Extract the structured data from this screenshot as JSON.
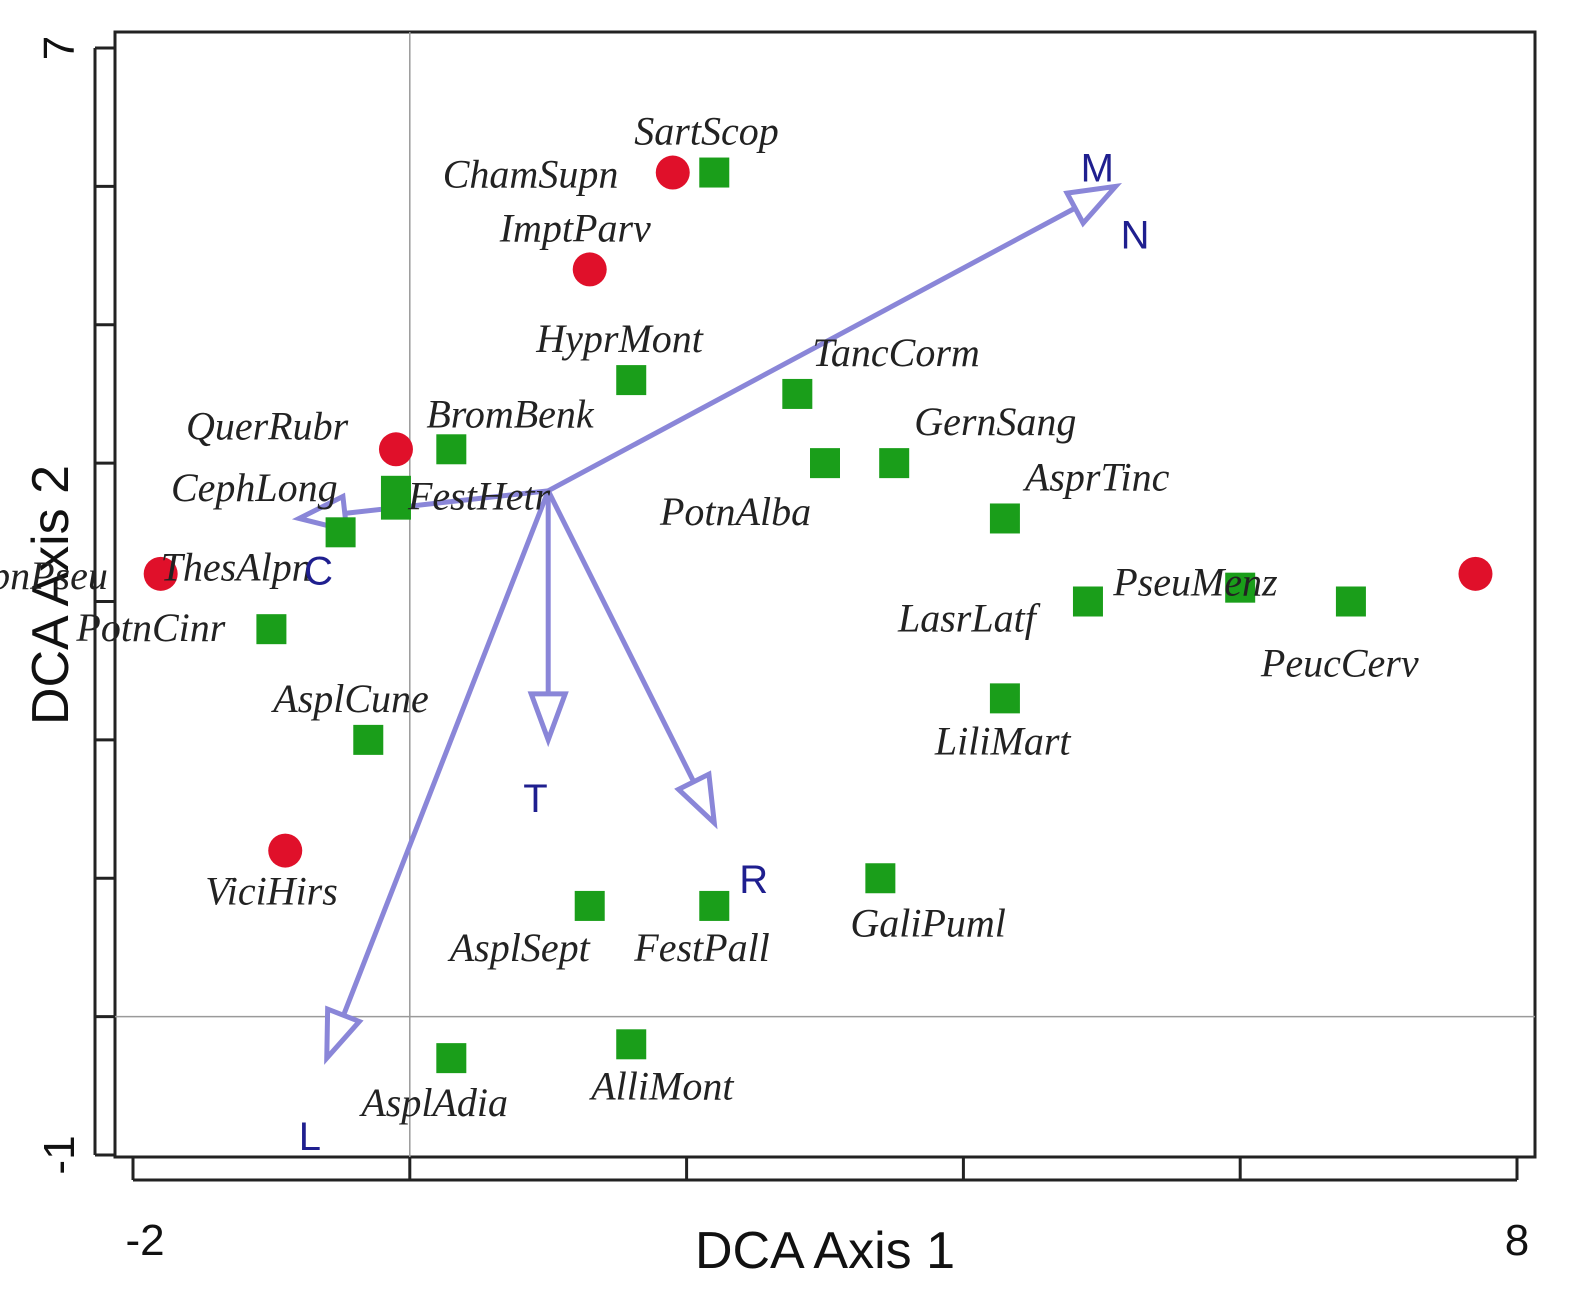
{
  "chart_data": {
    "type": "scatter",
    "title": "",
    "xlabel": "DCA Axis 1",
    "ylabel": "DCA Axis 2",
    "xlim": [
      -2,
      8
    ],
    "ylim": [
      -1,
      7
    ],
    "x_tick_labels": [
      "-2",
      "8"
    ],
    "y_tick_labels": [
      "-1",
      "7"
    ],
    "colors": {
      "species": "#1a9e1a",
      "invasive": "#e0102a",
      "arrow": "#8a86d8",
      "env_text": "#1f1f8f",
      "frame": "#222222",
      "zero_line": "#9a9a9a"
    },
    "species_squares": [
      {
        "label": "SartScop",
        "x": 2.2,
        "y": 6.1
      },
      {
        "label": "HyprMont",
        "x": 1.6,
        "y": 4.6
      },
      {
        "label": "TancCorm",
        "x": 2.8,
        "y": 4.5
      },
      {
        "label": "BromBenk",
        "x": 0.3,
        "y": 4.1
      },
      {
        "label": "GernSang",
        "x": 3.5,
        "y": 4.0
      },
      {
        "label": "PotnAlba",
        "x": 3.0,
        "y": 4.0
      },
      {
        "label": "CephLong",
        "x": -0.1,
        "y": 3.8
      },
      {
        "label": "FestHetr",
        "x": -0.1,
        "y": 3.7
      },
      {
        "label": "ThesAlpn",
        "x": -0.5,
        "y": 3.5
      },
      {
        "label": "AsprTinc",
        "x": 4.3,
        "y": 3.6
      },
      {
        "label": "PseuMenz",
        "x": 6.0,
        "y": 3.1
      },
      {
        "label": "LasrLatf",
        "x": 4.9,
        "y": 3.0
      },
      {
        "label": "PeucCerv",
        "x": 6.8,
        "y": 3.0
      },
      {
        "label": "PotnCinr",
        "x": -1.0,
        "y": 2.8
      },
      {
        "label": "LiliMart",
        "x": 4.3,
        "y": 2.3
      },
      {
        "label": "AsplCune",
        "x": -0.3,
        "y": 2.0
      },
      {
        "label": "GaliPuml",
        "x": 3.4,
        "y": 1.0
      },
      {
        "label": "FestPall",
        "x": 2.2,
        "y": 0.8
      },
      {
        "label": "AsplSept",
        "x": 1.3,
        "y": 0.8
      },
      {
        "label": "AlliMont",
        "x": 1.6,
        "y": -0.2
      },
      {
        "label": "AsplAdia",
        "x": 0.3,
        "y": -0.3
      }
    ],
    "species_circles": [
      {
        "label": "ChamSupn",
        "x": 1.9,
        "y": 6.1
      },
      {
        "label": "ImptParv",
        "x": 1.3,
        "y": 5.4
      },
      {
        "label": "QuerRubr",
        "x": -0.1,
        "y": 4.1
      },
      {
        "label": "RobnPseu",
        "x": -1.8,
        "y": 3.2
      },
      {
        "label": "ViciHirs",
        "x": -0.9,
        "y": 1.2
      },
      {
        "label": "",
        "x": 7.7,
        "y": 3.2
      }
    ],
    "env_vectors": [
      {
        "name": "M",
        "x": 5.1,
        "y": 6.0
      },
      {
        "name": "N",
        "x": 5.1,
        "y": 6.0
      },
      {
        "name": "C",
        "x": -0.8,
        "y": 3.6
      },
      {
        "name": "T",
        "x": 1.0,
        "y": 2.0
      },
      {
        "name": "R",
        "x": 2.2,
        "y": 1.4
      },
      {
        "name": "L",
        "x": -0.6,
        "y": -0.3
      }
    ],
    "vector_origin": {
      "x": 1.0,
      "y": 3.8
    }
  }
}
